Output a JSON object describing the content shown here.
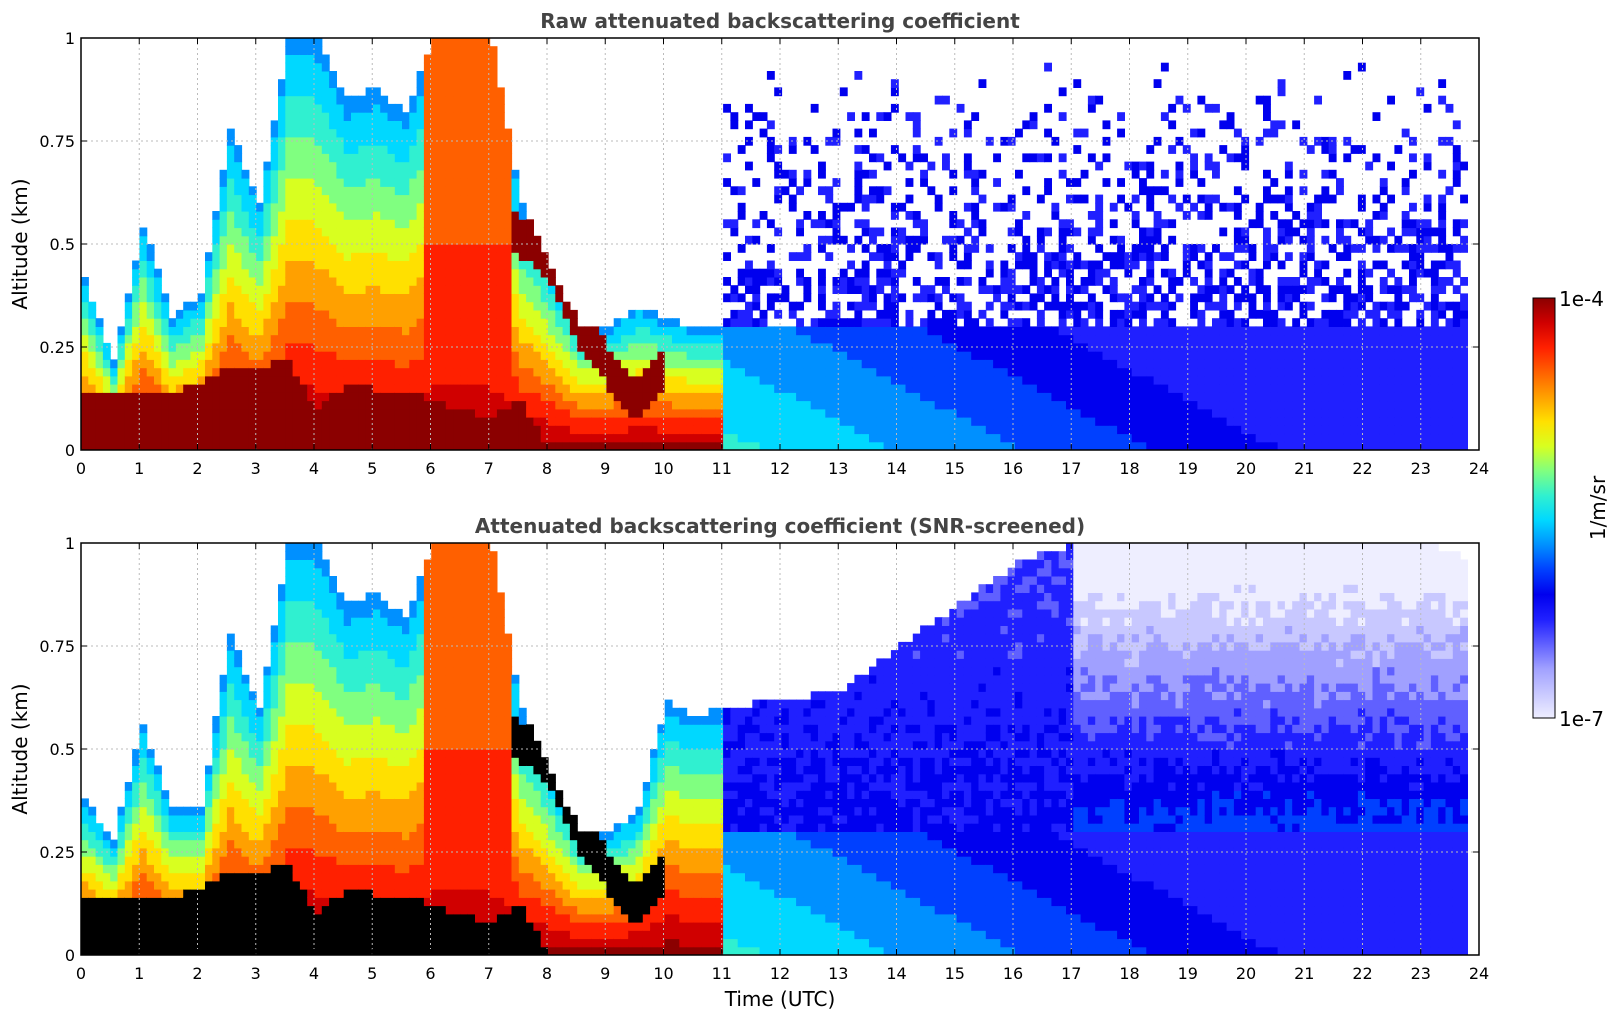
{
  "chart_data": [
    {
      "type": "heatmap",
      "title": "Raw attenuated backscattering coefficient",
      "xlabel": "",
      "ylabel": "Altitude (km)",
      "xlim": [
        0,
        24
      ],
      "ylim": [
        0,
        1
      ],
      "x_ticks": [
        "0",
        "1",
        "2",
        "3",
        "4",
        "5",
        "6",
        "7",
        "8",
        "9",
        "10",
        "11",
        "12",
        "13",
        "14",
        "15",
        "16",
        "17",
        "18",
        "19",
        "20",
        "21",
        "22",
        "23",
        "24"
      ],
      "y_ticks": [
        "0",
        "0.25",
        "0.5",
        "0.75",
        "1"
      ],
      "grid": true,
      "z_scale": "log",
      "z_range": [
        1e-07,
        0.0001
      ],
      "features": {
        "hours": [
          0,
          0.5,
          1,
          1.5,
          2,
          2.5,
          3,
          3.5,
          4,
          4.5,
          5,
          5.5,
          6,
          6.5,
          7,
          7.5,
          8,
          8.5,
          9,
          9.5,
          10,
          10.5,
          11,
          12,
          13,
          14,
          15,
          16,
          17,
          18,
          19,
          20,
          21,
          22,
          23,
          23.8
        ],
        "top_km": [
          0.42,
          0.22,
          0.55,
          0.32,
          0.38,
          0.78,
          0.6,
          1.0,
          1.0,
          0.85,
          0.88,
          0.82,
          1.0,
          1.0,
          1.0,
          0.6,
          0.45,
          0.3,
          0.3,
          0.35,
          0.32,
          0.3,
          0.3,
          0.3,
          0.3,
          0.3,
          0.3,
          0.3,
          0.3,
          0.3,
          0.3,
          0.3,
          0.3,
          0.3,
          0.3,
          0.3
        ],
        "dense_layer_top_km": [
          0.15,
          0.14,
          0.14,
          0.14,
          0.16,
          0.2,
          0.2,
          0.22,
          0.1,
          0.16,
          0.15,
          0.15,
          0.12,
          0.1,
          0.08,
          0.12,
          0.0,
          0.0,
          0.0,
          0.0,
          0.0,
          0.0,
          0.0,
          0.0,
          0.0,
          0.0,
          0.0,
          0.0,
          0.0,
          0.0,
          0.0,
          0.0,
          0.0,
          0.0,
          0.0,
          0.0
        ],
        "descending_layer": [
          [
            7.3,
            0.55
          ],
          [
            8.0,
            0.45
          ],
          [
            8.5,
            0.3
          ],
          [
            9.0,
            0.2
          ],
          [
            9.5,
            0.12
          ],
          [
            10.0,
            0.2
          ]
        ]
      }
    },
    {
      "type": "heatmap",
      "title": "Attenuated backscattering coefficient (SNR-screened)",
      "xlabel": "Time (UTC)",
      "ylabel": "Altitude (km)",
      "xlim": [
        0,
        24
      ],
      "ylim": [
        0,
        1
      ],
      "x_ticks": [
        "0",
        "1",
        "2",
        "3",
        "4",
        "5",
        "6",
        "7",
        "8",
        "9",
        "10",
        "11",
        "12",
        "13",
        "14",
        "15",
        "16",
        "17",
        "18",
        "19",
        "20",
        "21",
        "22",
        "23",
        "24"
      ],
      "y_ticks": [
        "0",
        "0.25",
        "0.5",
        "0.75",
        "1"
      ],
      "grid": true,
      "z_scale": "log",
      "z_range": [
        1e-07,
        0.0001
      ],
      "screened_top_km": [
        0.38,
        0.28,
        0.56,
        0.36,
        0.36,
        0.78,
        0.6,
        1.0,
        1.0,
        0.85,
        0.88,
        0.82,
        1.0,
        1.0,
        1.0,
        0.6,
        0.45,
        0.3,
        0.3,
        0.35,
        0.62,
        0.58,
        0.6,
        0.62,
        0.64,
        0.75,
        0.85,
        0.95,
        1.0,
        1.0,
        1.0,
        1.0,
        1.0,
        1.0,
        1.0,
        0.96
      ]
    }
  ],
  "colorbar": {
    "label": "1/m/sr",
    "max_label": "1e-4",
    "min_label": "1e-7",
    "colors": [
      "#eeeeff",
      "#c8c8ff",
      "#a0a0ff",
      "#6060ff",
      "#2020ff",
      "#0000ee",
      "#0040ff",
      "#0090ff",
      "#00d8ff",
      "#30f0d0",
      "#80ff80",
      "#d8ff20",
      "#ffe000",
      "#ffa000",
      "#ff6000",
      "#ff2000",
      "#d00000",
      "#8b0000"
    ]
  }
}
